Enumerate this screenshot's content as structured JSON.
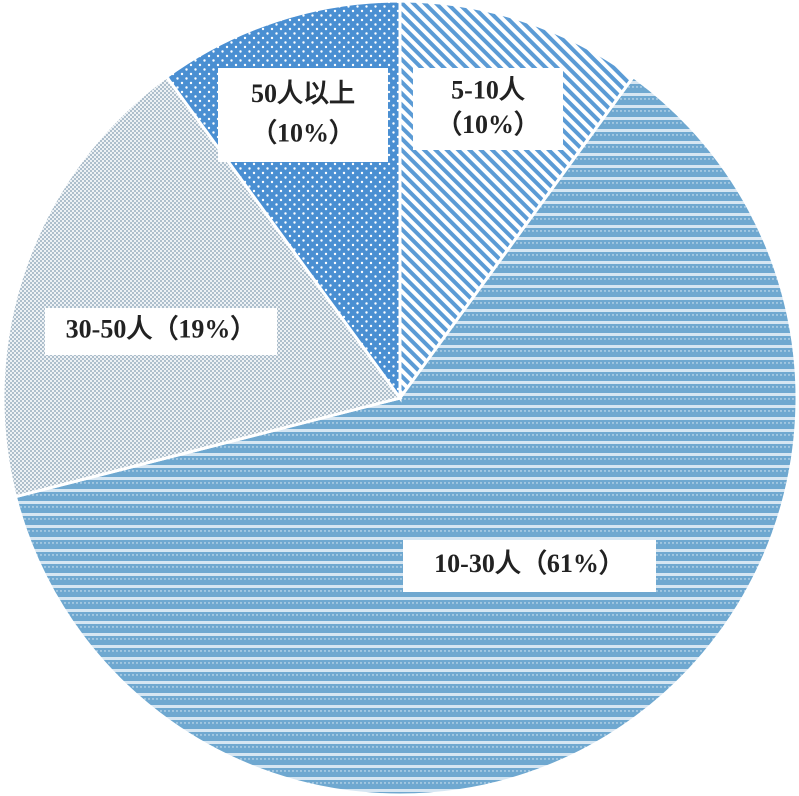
{
  "chart_data": {
    "type": "pie",
    "categories": [
      "5-10人",
      "10-30人",
      "30-50人",
      "50人以上"
    ],
    "values": [
      10,
      61,
      19,
      10
    ],
    "value_labels": [
      "（10%）",
      "（61%）",
      "（19%）",
      "（10%）"
    ],
    "colors": [
      "#5b9bd5",
      "#6fa8d0",
      "#aebfcc",
      "#4a8fd2"
    ]
  }
}
